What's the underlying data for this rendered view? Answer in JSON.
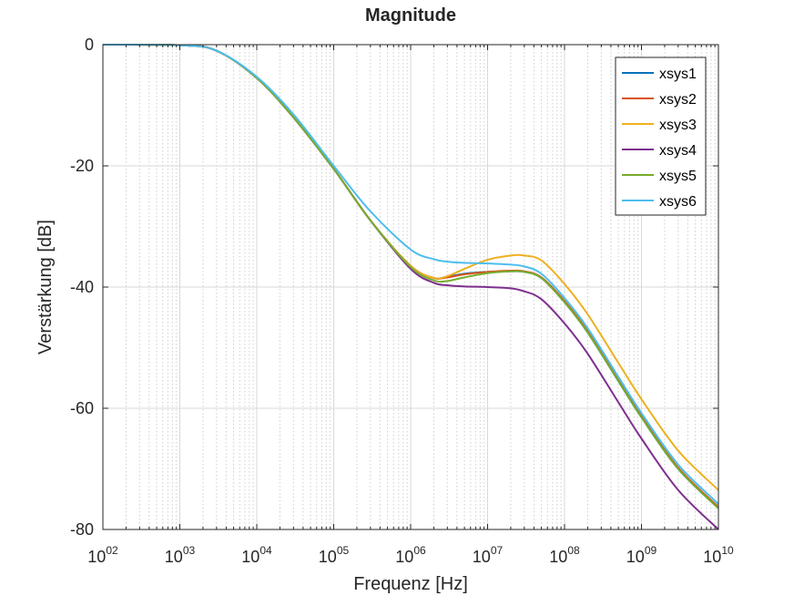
{
  "chart_data": {
    "type": "line",
    "title": "Magnitude",
    "xlabel": "Frequenz [Hz]",
    "ylabel": "Verstärkung [dB]",
    "xscale": "log",
    "xlim": [
      100,
      10000000000
    ],
    "ylim": [
      -80,
      0
    ],
    "grid": true,
    "minor_grid": true,
    "legend_position": "top-right",
    "xticks": [
      {
        "value": 100,
        "base": "10",
        "exp": "02"
      },
      {
        "value": 1000,
        "base": "10",
        "exp": "03"
      },
      {
        "value": 10000,
        "base": "10",
        "exp": "04"
      },
      {
        "value": 100000,
        "base": "10",
        "exp": "05"
      },
      {
        "value": 1000000,
        "base": "10",
        "exp": "06"
      },
      {
        "value": 10000000,
        "base": "10",
        "exp": "07"
      },
      {
        "value": 100000000,
        "base": "10",
        "exp": "08"
      },
      {
        "value": 1000000000,
        "base": "10",
        "exp": "09"
      },
      {
        "value": 10000000000,
        "base": "10",
        "exp": "10"
      }
    ],
    "yticks": [
      {
        "value": 0,
        "label": "0"
      },
      {
        "value": -20,
        "label": "-20"
      },
      {
        "value": -40,
        "label": "-40"
      },
      {
        "value": -60,
        "label": "-60"
      },
      {
        "value": -80,
        "label": "-80"
      }
    ],
    "x": [
      100,
      1000,
      3000,
      10000,
      30000,
      100000,
      300000,
      1000000,
      2000000,
      3000000,
      5000000,
      10000000,
      20000000,
      30000000,
      50000000,
      100000000,
      200000000,
      500000000,
      1000000000,
      3000000000,
      10000000000
    ],
    "series": [
      {
        "name": "xsys1",
        "color": "#0072BD",
        "values": [
          0,
          -0.1,
          -1.0,
          -5.5,
          -12,
          -20.5,
          -29,
          -36.5,
          -38.5,
          -38.3,
          -37.8,
          -37.5,
          -37.4,
          -37.5,
          -38.5,
          -42.5,
          -47.5,
          -55.5,
          -61.5,
          -70.0,
          -76.5
        ]
      },
      {
        "name": "xsys2",
        "color": "#D95319",
        "values": [
          0,
          -0.1,
          -1.0,
          -5.5,
          -12,
          -20.5,
          -29,
          -36.5,
          -38.5,
          -38.4,
          -37.9,
          -37.5,
          -37.3,
          -37.4,
          -38.4,
          -42.3,
          -47.3,
          -55.3,
          -61.3,
          -69.8,
          -76.3
        ]
      },
      {
        "name": "xsys3",
        "color": "#EDB120",
        "values": [
          0,
          -0.1,
          -1.0,
          -5.5,
          -12,
          -20.5,
          -29,
          -36.5,
          -38.5,
          -38.2,
          -37.0,
          -35.5,
          -34.8,
          -34.8,
          -35.6,
          -39.5,
          -44.5,
          -52.5,
          -58.5,
          -67.0,
          -73.5
        ]
      },
      {
        "name": "xsys4",
        "color": "#7E2F8E",
        "values": [
          0,
          -0.1,
          -1.0,
          -5.5,
          -12,
          -20.5,
          -29,
          -37.0,
          -39.3,
          -39.7,
          -39.9,
          -40.0,
          -40.2,
          -40.7,
          -42.0,
          -46.0,
          -51.0,
          -59.0,
          -65.0,
          -73.5,
          -80.0
        ]
      },
      {
        "name": "xsys5",
        "color": "#77AC30",
        "values": [
          0,
          -0.1,
          -1.0,
          -5.5,
          -12,
          -20.5,
          -29,
          -36.7,
          -38.9,
          -39.0,
          -38.4,
          -37.7,
          -37.4,
          -37.5,
          -38.5,
          -42.5,
          -47.5,
          -55.5,
          -61.5,
          -70.0,
          -76.5
        ]
      },
      {
        "name": "xsys6",
        "color": "#4DBEEE",
        "values": [
          0,
          -0.1,
          -1.0,
          -5.3,
          -11.5,
          -20,
          -27.5,
          -33.8,
          -35.4,
          -35.8,
          -36.0,
          -36.1,
          -36.3,
          -36.6,
          -37.8,
          -41.8,
          -46.8,
          -54.8,
          -60.8,
          -69.3,
          -75.8
        ]
      }
    ]
  }
}
